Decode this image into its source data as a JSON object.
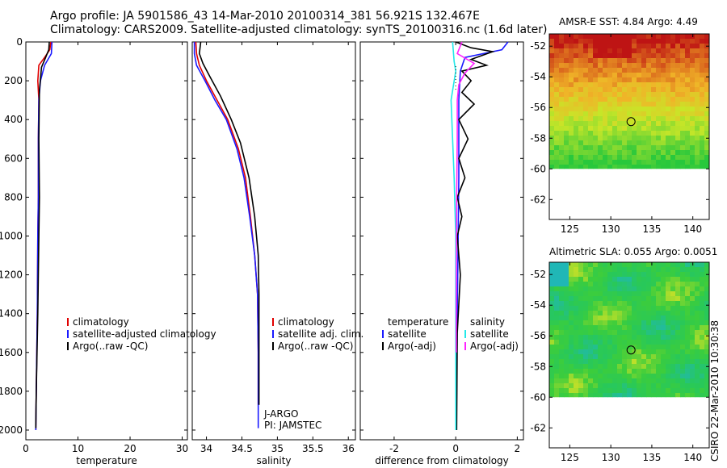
{
  "header": {
    "line1": "Argo profile: JA 5901586_43 14-Mar-2010 20100314_381 56.921S 132.467E",
    "line2": "Climatology: CARS2009. Satellite-adjusted climatology: synTS_20100316.nc (1.6d later)"
  },
  "footer": "CSIRO 22-Mar-2010 10:30:38",
  "colors": {
    "climatology": "#e00000",
    "satellite": "#1a1aff",
    "argo": "#000000",
    "sal_diff_sat": "#22e8e8",
    "sal_diff_argo": "#ff22ff"
  },
  "chart_data": [
    {
      "type": "line",
      "xlabel": "temperature",
      "xlim": [
        0,
        31
      ],
      "xticks": [
        0,
        10,
        20,
        30
      ],
      "ylim": [
        2050,
        0
      ],
      "yticks": [
        0,
        200,
        400,
        600,
        800,
        1000,
        1200,
        1400,
        1600,
        1800,
        2000
      ],
      "legend": [
        "climatology",
        "satellite-adjusted climatology",
        "Argo(..raw -QC)"
      ],
      "series": [
        {
          "name": "climatology",
          "color": "#e00000",
          "points": [
            [
              4.8,
              0
            ],
            [
              4.6,
              40
            ],
            [
              3.6,
              80
            ],
            [
              2.5,
              120
            ],
            [
              2.3,
              200
            ],
            [
              2.5,
              300
            ],
            [
              2.4,
              500
            ],
            [
              2.4,
              800
            ],
            [
              2.3,
              1000
            ],
            [
              2.2,
              1400
            ],
            [
              2.0,
              1800
            ],
            [
              1.9,
              2000
            ]
          ]
        },
        {
          "name": "satellite-adjusted climatology",
          "color": "#1a1aff",
          "points": [
            [
              5.0,
              0
            ],
            [
              4.9,
              60
            ],
            [
              3.6,
              120
            ],
            [
              2.8,
              200
            ],
            [
              2.5,
              300
            ],
            [
              2.4,
              500
            ],
            [
              2.4,
              800
            ],
            [
              2.3,
              1000
            ],
            [
              2.2,
              1400
            ],
            [
              2.0,
              1800
            ],
            [
              1.9,
              2000
            ]
          ]
        },
        {
          "name": "Argo(..raw -QC)",
          "color": "#000000",
          "points": [
            [
              4.5,
              0
            ],
            [
              4.4,
              40
            ],
            [
              3.8,
              80
            ],
            [
              3.0,
              130
            ],
            [
              2.6,
              250
            ],
            [
              2.5,
              500
            ],
            [
              2.6,
              800
            ],
            [
              2.5,
              1000
            ],
            [
              2.3,
              1400
            ],
            [
              2.0,
              1800
            ],
            [
              1.9,
              1990
            ]
          ]
        }
      ]
    },
    {
      "type": "line",
      "xlabel": "salinity",
      "xlim": [
        33.8,
        36.1
      ],
      "xticks": [
        34,
        34.5,
        35,
        35.5,
        36
      ],
      "ylim": [
        2050,
        0
      ],
      "legend": [
        "climatology",
        "satellite adj. clim.",
        "Argo(..raw -QC)"
      ],
      "annotation": [
        "J-ARGO",
        "PI: JAMSTEC"
      ],
      "series": [
        {
          "name": "climatology",
          "color": "#e00000",
          "points": [
            [
              33.85,
              0
            ],
            [
              33.86,
              60
            ],
            [
              33.9,
              120
            ],
            [
              34.0,
              200
            ],
            [
              34.15,
              300
            ],
            [
              34.3,
              400
            ],
            [
              34.45,
              550
            ],
            [
              34.55,
              700
            ],
            [
              34.62,
              900
            ],
            [
              34.68,
              1100
            ],
            [
              34.72,
              1300
            ],
            [
              34.73,
              1600
            ],
            [
              34.73,
              1870
            ]
          ]
        },
        {
          "name": "satellite adj. clim.",
          "color": "#1a1aff",
          "points": [
            [
              33.83,
              0
            ],
            [
              33.83,
              60
            ],
            [
              33.86,
              120
            ],
            [
              33.98,
              200
            ],
            [
              34.12,
              300
            ],
            [
              34.28,
              400
            ],
            [
              34.43,
              550
            ],
            [
              34.53,
              700
            ],
            [
              34.61,
              900
            ],
            [
              34.68,
              1100
            ],
            [
              34.72,
              1300
            ],
            [
              34.73,
              1600
            ],
            [
              34.73,
              1990
            ]
          ]
        },
        {
          "name": "Argo(..raw -QC)",
          "color": "#000000",
          "points": [
            [
              33.92,
              0
            ],
            [
              33.9,
              60
            ],
            [
              33.95,
              110
            ],
            [
              34.05,
              180
            ],
            [
              34.2,
              280
            ],
            [
              34.35,
              400
            ],
            [
              34.48,
              520
            ],
            [
              34.6,
              700
            ],
            [
              34.68,
              900
            ],
            [
              34.73,
              1100
            ],
            [
              34.74,
              1300
            ],
            [
              34.74,
              1600
            ],
            [
              34.74,
              1870
            ]
          ]
        }
      ]
    },
    {
      "type": "line",
      "xlabel": "difference from climatology",
      "xlim": [
        -3.1,
        2.2
      ],
      "xticks": [
        -2,
        0,
        2
      ],
      "ylim": [
        2050,
        0
      ],
      "legend_left": [
        "temperature",
        "satellite",
        "Argo(-adj)"
      ],
      "legend_right": [
        "salinity",
        "satellite",
        "Argo(-adj)"
      ],
      "series": [
        {
          "name": "temperature satellite",
          "color": "#1a1aff",
          "points": [
            [
              1.7,
              0
            ],
            [
              1.5,
              40
            ],
            [
              0.3,
              80
            ],
            [
              0.15,
              150
            ],
            [
              0.1,
              300
            ],
            [
              0.1,
              700
            ],
            [
              0.08,
              1000
            ],
            [
              0.05,
              1400
            ],
            [
              0.03,
              1800
            ],
            [
              0.02,
              2000
            ]
          ]
        },
        {
          "name": "temperature Argo(-adj)",
          "color": "#000000",
          "points": [
            [
              0.0,
              0
            ],
            [
              0.5,
              30
            ],
            [
              1.2,
              50
            ],
            [
              0.5,
              90
            ],
            [
              1.0,
              120
            ],
            [
              0.2,
              150
            ],
            [
              0.5,
              200
            ],
            [
              0.2,
              260
            ],
            [
              0.6,
              320
            ],
            [
              0.1,
              400
            ],
            [
              0.4,
              500
            ],
            [
              0.1,
              600
            ],
            [
              0.3,
              700
            ],
            [
              0.05,
              800
            ],
            [
              0.2,
              900
            ],
            [
              0.05,
              1000
            ],
            [
              0.15,
              1200
            ],
            [
              0.05,
              1500
            ],
            [
              0.03,
              2000
            ]
          ]
        },
        {
          "name": "salinity satellite",
          "color": "#22e8e8",
          "points": [
            [
              -0.1,
              0
            ],
            [
              -0.05,
              100
            ],
            [
              0.0,
              150
            ],
            [
              -0.15,
              300
            ],
            [
              -0.1,
              500
            ],
            [
              -0.05,
              700
            ],
            [
              0.0,
              1000
            ],
            [
              0.0,
              1500
            ],
            [
              0.0,
              2000
            ]
          ]
        },
        {
          "name": "salinity Argo(-adj)",
          "color": "#ff22ff",
          "points": [
            [
              0.2,
              0
            ],
            [
              0.05,
              60
            ],
            [
              0.6,
              110
            ],
            [
              0.3,
              160
            ],
            [
              0.1,
              220
            ],
            [
              0.05,
              300
            ],
            [
              0.05,
              500
            ],
            [
              0.03,
              800
            ],
            [
              0.02,
              1200
            ],
            [
              0.02,
              1600
            ]
          ]
        }
      ]
    },
    {
      "type": "heatmap",
      "title": "AMSR-E SST: 4.84 Argo: 4.49",
      "xticks": [
        125,
        130,
        135,
        140
      ],
      "yticks": [
        -52,
        -54,
        -56,
        -58,
        -60,
        -62
      ],
      "xlim": [
        122.5,
        142
      ],
      "ylim": [
        -63.3,
        -51.2
      ],
      "data_bottom": -60,
      "marker": [
        132.467,
        -56.921
      ],
      "palette": "sst"
    },
    {
      "type": "heatmap",
      "title": "Altimetric SLA: 0.055 Argo: 0.0051",
      "xticks": [
        125,
        130,
        135,
        140
      ],
      "yticks": [
        -52,
        -54,
        -56,
        -58,
        -60,
        -62
      ],
      "xlim": [
        122.5,
        142
      ],
      "ylim": [
        -63.3,
        -51.2
      ],
      "data_bottom": -60,
      "marker": [
        132.467,
        -56.921
      ],
      "palette": "sla"
    }
  ]
}
